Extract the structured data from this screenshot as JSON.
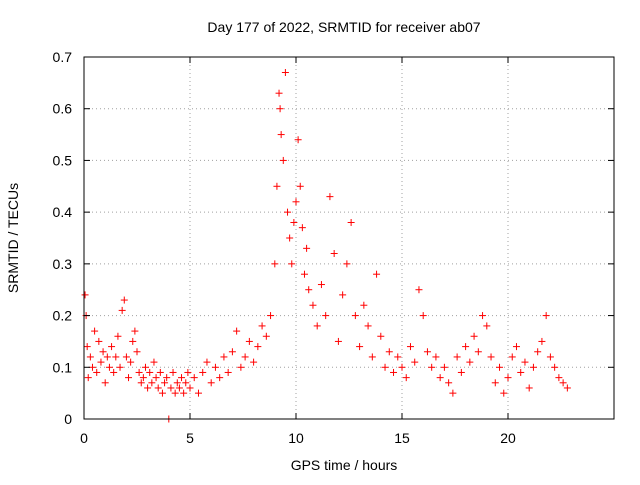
{
  "chart_data": {
    "type": "scatter",
    "title": "Day 177 of 2022, SRMTID for receiver ab07",
    "xlabel": "GPS time / hours",
    "ylabel": "SRMTID / TECUs",
    "xlim": [
      0,
      25
    ],
    "ylim": [
      0,
      0.7
    ],
    "grid": true,
    "marker": "+",
    "series": [
      {
        "name": "SRMTID",
        "color": "#ff0000",
        "points": [
          [
            0.05,
            0.24
          ],
          [
            0.1,
            0.2
          ],
          [
            0.15,
            0.14
          ],
          [
            0.2,
            0.08
          ],
          [
            0.3,
            0.12
          ],
          [
            0.4,
            0.1
          ],
          [
            0.5,
            0.17
          ],
          [
            0.6,
            0.09
          ],
          [
            0.7,
            0.15
          ],
          [
            0.8,
            0.11
          ],
          [
            0.9,
            0.13
          ],
          [
            1.0,
            0.07
          ],
          [
            1.1,
            0.12
          ],
          [
            1.2,
            0.1
          ],
          [
            1.3,
            0.14
          ],
          [
            1.4,
            0.09
          ],
          [
            1.5,
            0.12
          ],
          [
            1.6,
            0.16
          ],
          [
            1.7,
            0.1
          ],
          [
            1.8,
            0.21
          ],
          [
            1.9,
            0.23
          ],
          [
            2.0,
            0.12
          ],
          [
            2.1,
            0.08
          ],
          [
            2.2,
            0.11
          ],
          [
            2.3,
            0.15
          ],
          [
            2.4,
            0.17
          ],
          [
            2.5,
            0.13
          ],
          [
            2.6,
            0.09
          ],
          [
            2.7,
            0.07
          ],
          [
            2.8,
            0.08
          ],
          [
            2.9,
            0.1
          ],
          [
            3.0,
            0.06
          ],
          [
            3.1,
            0.09
          ],
          [
            3.2,
            0.07
          ],
          [
            3.3,
            0.11
          ],
          [
            3.4,
            0.08
          ],
          [
            3.5,
            0.06
          ],
          [
            3.6,
            0.09
          ],
          [
            3.7,
            0.05
          ],
          [
            3.8,
            0.07
          ],
          [
            3.9,
            0.08
          ],
          [
            4.0,
            0.0
          ],
          [
            4.1,
            0.06
          ],
          [
            4.2,
            0.09
          ],
          [
            4.3,
            0.05
          ],
          [
            4.4,
            0.07
          ],
          [
            4.5,
            0.06
          ],
          [
            4.6,
            0.08
          ],
          [
            4.7,
            0.05
          ],
          [
            4.8,
            0.07
          ],
          [
            4.9,
            0.09
          ],
          [
            5.0,
            0.06
          ],
          [
            5.2,
            0.08
          ],
          [
            5.4,
            0.05
          ],
          [
            5.6,
            0.09
          ],
          [
            5.8,
            0.11
          ],
          [
            6.0,
            0.07
          ],
          [
            6.2,
            0.1
          ],
          [
            6.4,
            0.08
          ],
          [
            6.6,
            0.12
          ],
          [
            6.8,
            0.09
          ],
          [
            7.0,
            0.13
          ],
          [
            7.2,
            0.17
          ],
          [
            7.4,
            0.1
          ],
          [
            7.6,
            0.12
          ],
          [
            7.8,
            0.15
          ],
          [
            8.0,
            0.11
          ],
          [
            8.2,
            0.14
          ],
          [
            8.4,
            0.18
          ],
          [
            8.6,
            0.16
          ],
          [
            8.8,
            0.2
          ],
          [
            9.0,
            0.3
          ],
          [
            9.1,
            0.45
          ],
          [
            9.2,
            0.63
          ],
          [
            9.25,
            0.6
          ],
          [
            9.3,
            0.55
          ],
          [
            9.4,
            0.5
          ],
          [
            9.5,
            0.67
          ],
          [
            9.6,
            0.4
          ],
          [
            9.7,
            0.35
          ],
          [
            9.8,
            0.3
          ],
          [
            9.9,
            0.38
          ],
          [
            10.0,
            0.42
          ],
          [
            10.1,
            0.54
          ],
          [
            10.2,
            0.45
          ],
          [
            10.3,
            0.37
          ],
          [
            10.4,
            0.28
          ],
          [
            10.5,
            0.33
          ],
          [
            10.6,
            0.25
          ],
          [
            10.8,
            0.22
          ],
          [
            11.0,
            0.18
          ],
          [
            11.2,
            0.26
          ],
          [
            11.4,
            0.2
          ],
          [
            11.6,
            0.43
          ],
          [
            11.8,
            0.32
          ],
          [
            12.0,
            0.15
          ],
          [
            12.2,
            0.24
          ],
          [
            12.4,
            0.3
          ],
          [
            12.6,
            0.38
          ],
          [
            12.8,
            0.2
          ],
          [
            13.0,
            0.14
          ],
          [
            13.2,
            0.22
          ],
          [
            13.4,
            0.18
          ],
          [
            13.6,
            0.12
          ],
          [
            13.8,
            0.28
          ],
          [
            14.0,
            0.16
          ],
          [
            14.2,
            0.1
          ],
          [
            14.4,
            0.13
          ],
          [
            14.6,
            0.09
          ],
          [
            14.8,
            0.12
          ],
          [
            15.0,
            0.1
          ],
          [
            15.2,
            0.08
          ],
          [
            15.4,
            0.14
          ],
          [
            15.6,
            0.11
          ],
          [
            15.8,
            0.25
          ],
          [
            16.0,
            0.2
          ],
          [
            16.2,
            0.13
          ],
          [
            16.4,
            0.1
          ],
          [
            16.6,
            0.12
          ],
          [
            16.8,
            0.08
          ],
          [
            17.0,
            0.1
          ],
          [
            17.2,
            0.07
          ],
          [
            17.4,
            0.05
          ],
          [
            17.6,
            0.12
          ],
          [
            17.8,
            0.09
          ],
          [
            18.0,
            0.14
          ],
          [
            18.2,
            0.11
          ],
          [
            18.4,
            0.16
          ],
          [
            18.6,
            0.13
          ],
          [
            18.8,
            0.2
          ],
          [
            19.0,
            0.18
          ],
          [
            19.2,
            0.12
          ],
          [
            19.4,
            0.07
          ],
          [
            19.6,
            0.1
          ],
          [
            19.8,
            0.05
          ],
          [
            20.0,
            0.08
          ],
          [
            20.2,
            0.12
          ],
          [
            20.4,
            0.14
          ],
          [
            20.6,
            0.09
          ],
          [
            20.8,
            0.11
          ],
          [
            21.0,
            0.06
          ],
          [
            21.2,
            0.1
          ],
          [
            21.4,
            0.13
          ],
          [
            21.6,
            0.15
          ],
          [
            21.8,
            0.2
          ],
          [
            22.0,
            0.12
          ],
          [
            22.2,
            0.1
          ],
          [
            22.4,
            0.08
          ],
          [
            22.6,
            0.07
          ],
          [
            22.8,
            0.06
          ]
        ]
      }
    ],
    "xticks": [
      0,
      5,
      10,
      15,
      20
    ],
    "yticks": [
      0,
      0.1,
      0.2,
      0.3,
      0.4,
      0.5,
      0.6,
      0.7
    ],
    "xtick_labels": [
      "0",
      "5",
      "10",
      "15",
      "20"
    ],
    "ytick_labels": [
      "0",
      "0.1",
      "0.2",
      "0.3",
      "0.4",
      "0.5",
      "0.6",
      "0.7"
    ]
  }
}
